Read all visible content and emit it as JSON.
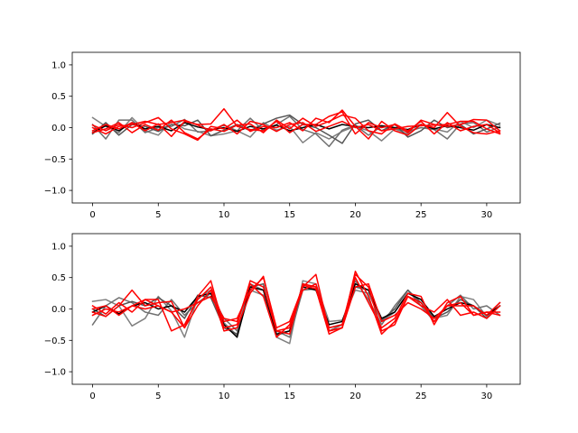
{
  "chart_data": [
    {
      "type": "line",
      "title": "",
      "xlabel": "",
      "ylabel": "",
      "xlim": [
        -1.55,
        32.55
      ],
      "ylim": [
        -1.2,
        1.2
      ],
      "xticks": [
        0,
        5,
        10,
        15,
        20,
        25,
        30
      ],
      "yticks": [
        -1.0,
        -0.5,
        0.0,
        0.5,
        1.0
      ],
      "xtick_labels": [
        "0",
        "5",
        "10",
        "15",
        "20",
        "25",
        "30"
      ],
      "ytick_labels": [
        "−1.0",
        "−0.5",
        "0.0",
        "0.5",
        "1.0"
      ],
      "grid": false,
      "x": [
        0,
        1,
        2,
        3,
        4,
        5,
        6,
        7,
        8,
        9,
        10,
        11,
        12,
        13,
        14,
        15,
        16,
        17,
        18,
        19,
        20,
        21,
        22,
        23,
        24,
        25,
        26,
        27,
        28,
        29,
        30,
        31
      ],
      "series": [
        {
          "color": "#808080",
          "values": [
            0.16,
            0.02,
            -0.08,
            0.16,
            -0.05,
            -0.12,
            0.1,
            -0.02,
            -0.06,
            -0.13,
            -0.1,
            -0.05,
            -0.15,
            0.08,
            -0.04,
            0.02,
            -0.24,
            -0.08,
            -0.18,
            -0.06,
            0.02,
            -0.05,
            -0.21,
            -0.02,
            -0.1,
            0.05,
            -0.02,
            -0.07,
            0.1,
            0.0,
            0.12,
            0.04
          ]
        },
        {
          "color": "#707070",
          "values": [
            0.05,
            -0.18,
            0.12,
            0.12,
            -0.08,
            0.0,
            0.02,
            0.13,
            -0.07,
            -0.05,
            0.04,
            -0.05,
            0.15,
            -0.05,
            0.05,
            0.18,
            -0.03,
            -0.1,
            -0.3,
            -0.04,
            0.04,
            -0.12,
            0.02,
            -0.02,
            -0.06,
            0.0,
            -0.03,
            -0.18,
            0.06,
            0.08,
            -0.07,
            0.01
          ]
        },
        {
          "color": "#555555",
          "values": [
            -0.1,
            0.08,
            -0.12,
            0.05,
            0.02,
            -0.06,
            0.05,
            0.03,
            0.12,
            -0.13,
            -0.04,
            0.05,
            -0.05,
            0.06,
            0.15,
            0.2,
            0.05,
            0.0,
            -0.12,
            -0.25,
            0.06,
            0.12,
            -0.05,
            0.05,
            -0.15,
            -0.05,
            0.12,
            0.0,
            0.05,
            -0.1,
            -0.02,
            0.07
          ]
        },
        {
          "color": "#000000",
          "values": [
            -0.08,
            0.03,
            -0.05,
            0.08,
            -0.02,
            0.02,
            -0.05,
            0.08,
            0.01,
            -0.03,
            0.0,
            -0.06,
            0.02,
            -0.02,
            0.04,
            -0.05,
            0.0,
            0.05,
            -0.02,
            0.05,
            0.02,
            0.0,
            0.03,
            0.0,
            -0.03,
            0.05,
            -0.02,
            0.03,
            0.0,
            -0.04,
            0.05,
            0.0
          ]
        },
        {
          "color": "#ff0000",
          "values": [
            -0.05,
            0.05,
            -0.02,
            0.08,
            -0.05,
            0.06,
            -0.14,
            0.1,
            0.05,
            0.06,
            0.3,
            0.02,
            -0.03,
            -0.05,
            0.1,
            -0.08,
            0.05,
            0.05,
            0.18,
            0.25,
            -0.1,
            0.08,
            0.0,
            0.05,
            -0.08,
            0.12,
            0.05,
            0.02,
            0.05,
            0.13,
            0.12,
            -0.05
          ]
        },
        {
          "color": "#ff0000",
          "values": [
            0.04,
            -0.05,
            0.05,
            0.0,
            0.08,
            0.16,
            -0.02,
            -0.1,
            -0.2,
            0.02,
            -0.02,
            0.12,
            -0.06,
            0.02,
            0.0,
            0.08,
            -0.05,
            0.15,
            0.08,
            0.28,
            0.02,
            -0.18,
            0.1,
            -0.05,
            -0.12,
            0.05,
            0.0,
            0.24,
            0.02,
            -0.08,
            -0.1,
            -0.05
          ]
        },
        {
          "color": "#ff0000",
          "values": [
            -0.08,
            -0.02,
            0.08,
            -0.08,
            0.05,
            -0.04,
            0.12,
            -0.08,
            -0.18,
            -0.02,
            -0.06,
            0.04,
            0.06,
            -0.08,
            0.12,
            -0.02,
            0.15,
            0.02,
            0.1,
            0.2,
            0.15,
            -0.05,
            -0.1,
            0.06,
            -0.05,
            0.1,
            -0.1,
            0.08,
            -0.05,
            0.02,
            0.05,
            -0.08
          ]
        },
        {
          "color": "#ff0000",
          "values": [
            0.0,
            -0.1,
            0.02,
            0.05,
            0.1,
            0.05,
            0.08,
            0.12,
            0.04,
            -0.05,
            0.05,
            -0.1,
            0.1,
            0.05,
            -0.06,
            0.05,
            0.08,
            -0.06,
            0.02,
            0.1,
            0.0,
            0.05,
            -0.05,
            -0.02,
            0.02,
            0.03,
            0.04,
            0.05,
            0.1,
            0.1,
            -0.02,
            -0.1
          ]
        }
      ]
    },
    {
      "type": "line",
      "title": "",
      "xlabel": "",
      "ylabel": "",
      "xlim": [
        -1.55,
        32.55
      ],
      "ylim": [
        -1.2,
        1.2
      ],
      "xticks": [
        0,
        5,
        10,
        15,
        20,
        25,
        30
      ],
      "yticks": [
        -1.0,
        -0.5,
        0.0,
        0.5,
        1.0
      ],
      "xtick_labels": [
        "0",
        "5",
        "10",
        "15",
        "20",
        "25",
        "30"
      ],
      "ytick_labels": [
        "−1.0",
        "−0.5",
        "0.0",
        "0.5",
        "1.0"
      ],
      "grid": false,
      "x": [
        0,
        1,
        2,
        3,
        4,
        5,
        6,
        7,
        8,
        9,
        10,
        11,
        12,
        13,
        14,
        15,
        16,
        17,
        18,
        19,
        20,
        21,
        22,
        23,
        24,
        25,
        26,
        27,
        28,
        29,
        30,
        31
      ],
      "series": [
        {
          "color": "#808080",
          "values": [
            0.12,
            0.15,
            0.05,
            -0.27,
            -0.15,
            0.2,
            -0.03,
            -0.45,
            0.18,
            0.3,
            -0.22,
            -0.42,
            0.3,
            0.22,
            -0.45,
            -0.55,
            0.45,
            0.4,
            -0.2,
            -0.18,
            0.3,
            0.25,
            -0.2,
            -0.05,
            0.25,
            0.15,
            -0.15,
            -0.1,
            0.2,
            0.15,
            -0.12,
            0.1
          ]
        },
        {
          "color": "#707070",
          "values": [
            -0.25,
            0.05,
            0.18,
            0.1,
            -0.05,
            -0.1,
            0.15,
            -0.1,
            0.1,
            0.25,
            -0.15,
            -0.35,
            0.4,
            0.3,
            -0.35,
            -0.45,
            0.3,
            0.32,
            -0.35,
            -0.25,
            0.45,
            0.15,
            -0.25,
            0.05,
            0.3,
            0.05,
            -0.2,
            0.05,
            0.22,
            0.0,
            0.05,
            -0.1
          ]
        },
        {
          "color": "#555555",
          "values": [
            0.0,
            -0.12,
            0.05,
            0.12,
            0.05,
            0.18,
            0.05,
            -0.15,
            0.22,
            0.18,
            -0.3,
            -0.4,
            0.35,
            0.4,
            -0.42,
            -0.35,
            0.4,
            0.35,
            -0.3,
            -0.25,
            0.35,
            0.3,
            -0.18,
            0.0,
            0.3,
            0.1,
            -0.15,
            -0.05,
            0.15,
            0.05,
            -0.15,
            0.05
          ]
        },
        {
          "color": "#000000",
          "values": [
            -0.05,
            0.05,
            -0.08,
            0.05,
            0.1,
            0.0,
            0.05,
            -0.05,
            0.2,
            0.25,
            -0.25,
            -0.45,
            0.35,
            0.3,
            -0.4,
            -0.35,
            0.35,
            0.3,
            -0.25,
            -0.2,
            0.4,
            0.3,
            -0.15,
            -0.05,
            0.25,
            0.15,
            -0.12,
            0.0,
            0.1,
            0.05,
            -0.1,
            0.05
          ]
        },
        {
          "color": "#ff0000",
          "values": [
            -0.05,
            -0.12,
            0.05,
            0.3,
            0.05,
            0.1,
            0.12,
            -0.3,
            0.2,
            0.45,
            -0.3,
            -0.25,
            0.45,
            0.35,
            -0.35,
            -0.3,
            0.38,
            0.32,
            -0.4,
            -0.3,
            0.6,
            0.2,
            -0.4,
            -0.2,
            0.2,
            0.1,
            -0.2,
            0.05,
            0.05,
            0.05,
            -0.1,
            0.1
          ]
        },
        {
          "color": "#ff0000",
          "values": [
            0.05,
            -0.08,
            0.1,
            -0.05,
            0.15,
            0.15,
            -0.35,
            -0.25,
            0.15,
            0.35,
            -0.2,
            -0.15,
            0.3,
            0.5,
            -0.3,
            -0.2,
            0.35,
            0.55,
            -0.35,
            -0.3,
            0.5,
            0.1,
            -0.3,
            -0.15,
            0.25,
            0.2,
            -0.25,
            0.1,
            0.2,
            -0.1,
            -0.05,
            -0.05
          ]
        },
        {
          "color": "#ff0000",
          "values": [
            -0.1,
            0.0,
            -0.05,
            0.05,
            0.0,
            0.05,
            -0.05,
            -0.3,
            0.05,
            0.3,
            -0.35,
            -0.3,
            0.25,
            0.52,
            -0.35,
            -0.4,
            0.4,
            0.35,
            -0.3,
            -0.25,
            0.55,
            0.35,
            -0.35,
            -0.25,
            0.2,
            0.05,
            -0.05,
            0.15,
            -0.1,
            -0.05,
            -0.15,
            0.05
          ]
        },
        {
          "color": "#ff0000",
          "values": [
            0.0,
            0.05,
            -0.1,
            0.05,
            0.15,
            0.05,
            -0.05,
            0.0,
            0.1,
            0.2,
            -0.15,
            -0.2,
            0.4,
            0.2,
            -0.45,
            -0.25,
            0.3,
            0.4,
            -0.35,
            -0.3,
            0.35,
            0.4,
            -0.2,
            -0.1,
            0.1,
            0.0,
            -0.15,
            0.05,
            0.1,
            -0.1,
            -0.05,
            -0.1
          ]
        }
      ]
    }
  ]
}
